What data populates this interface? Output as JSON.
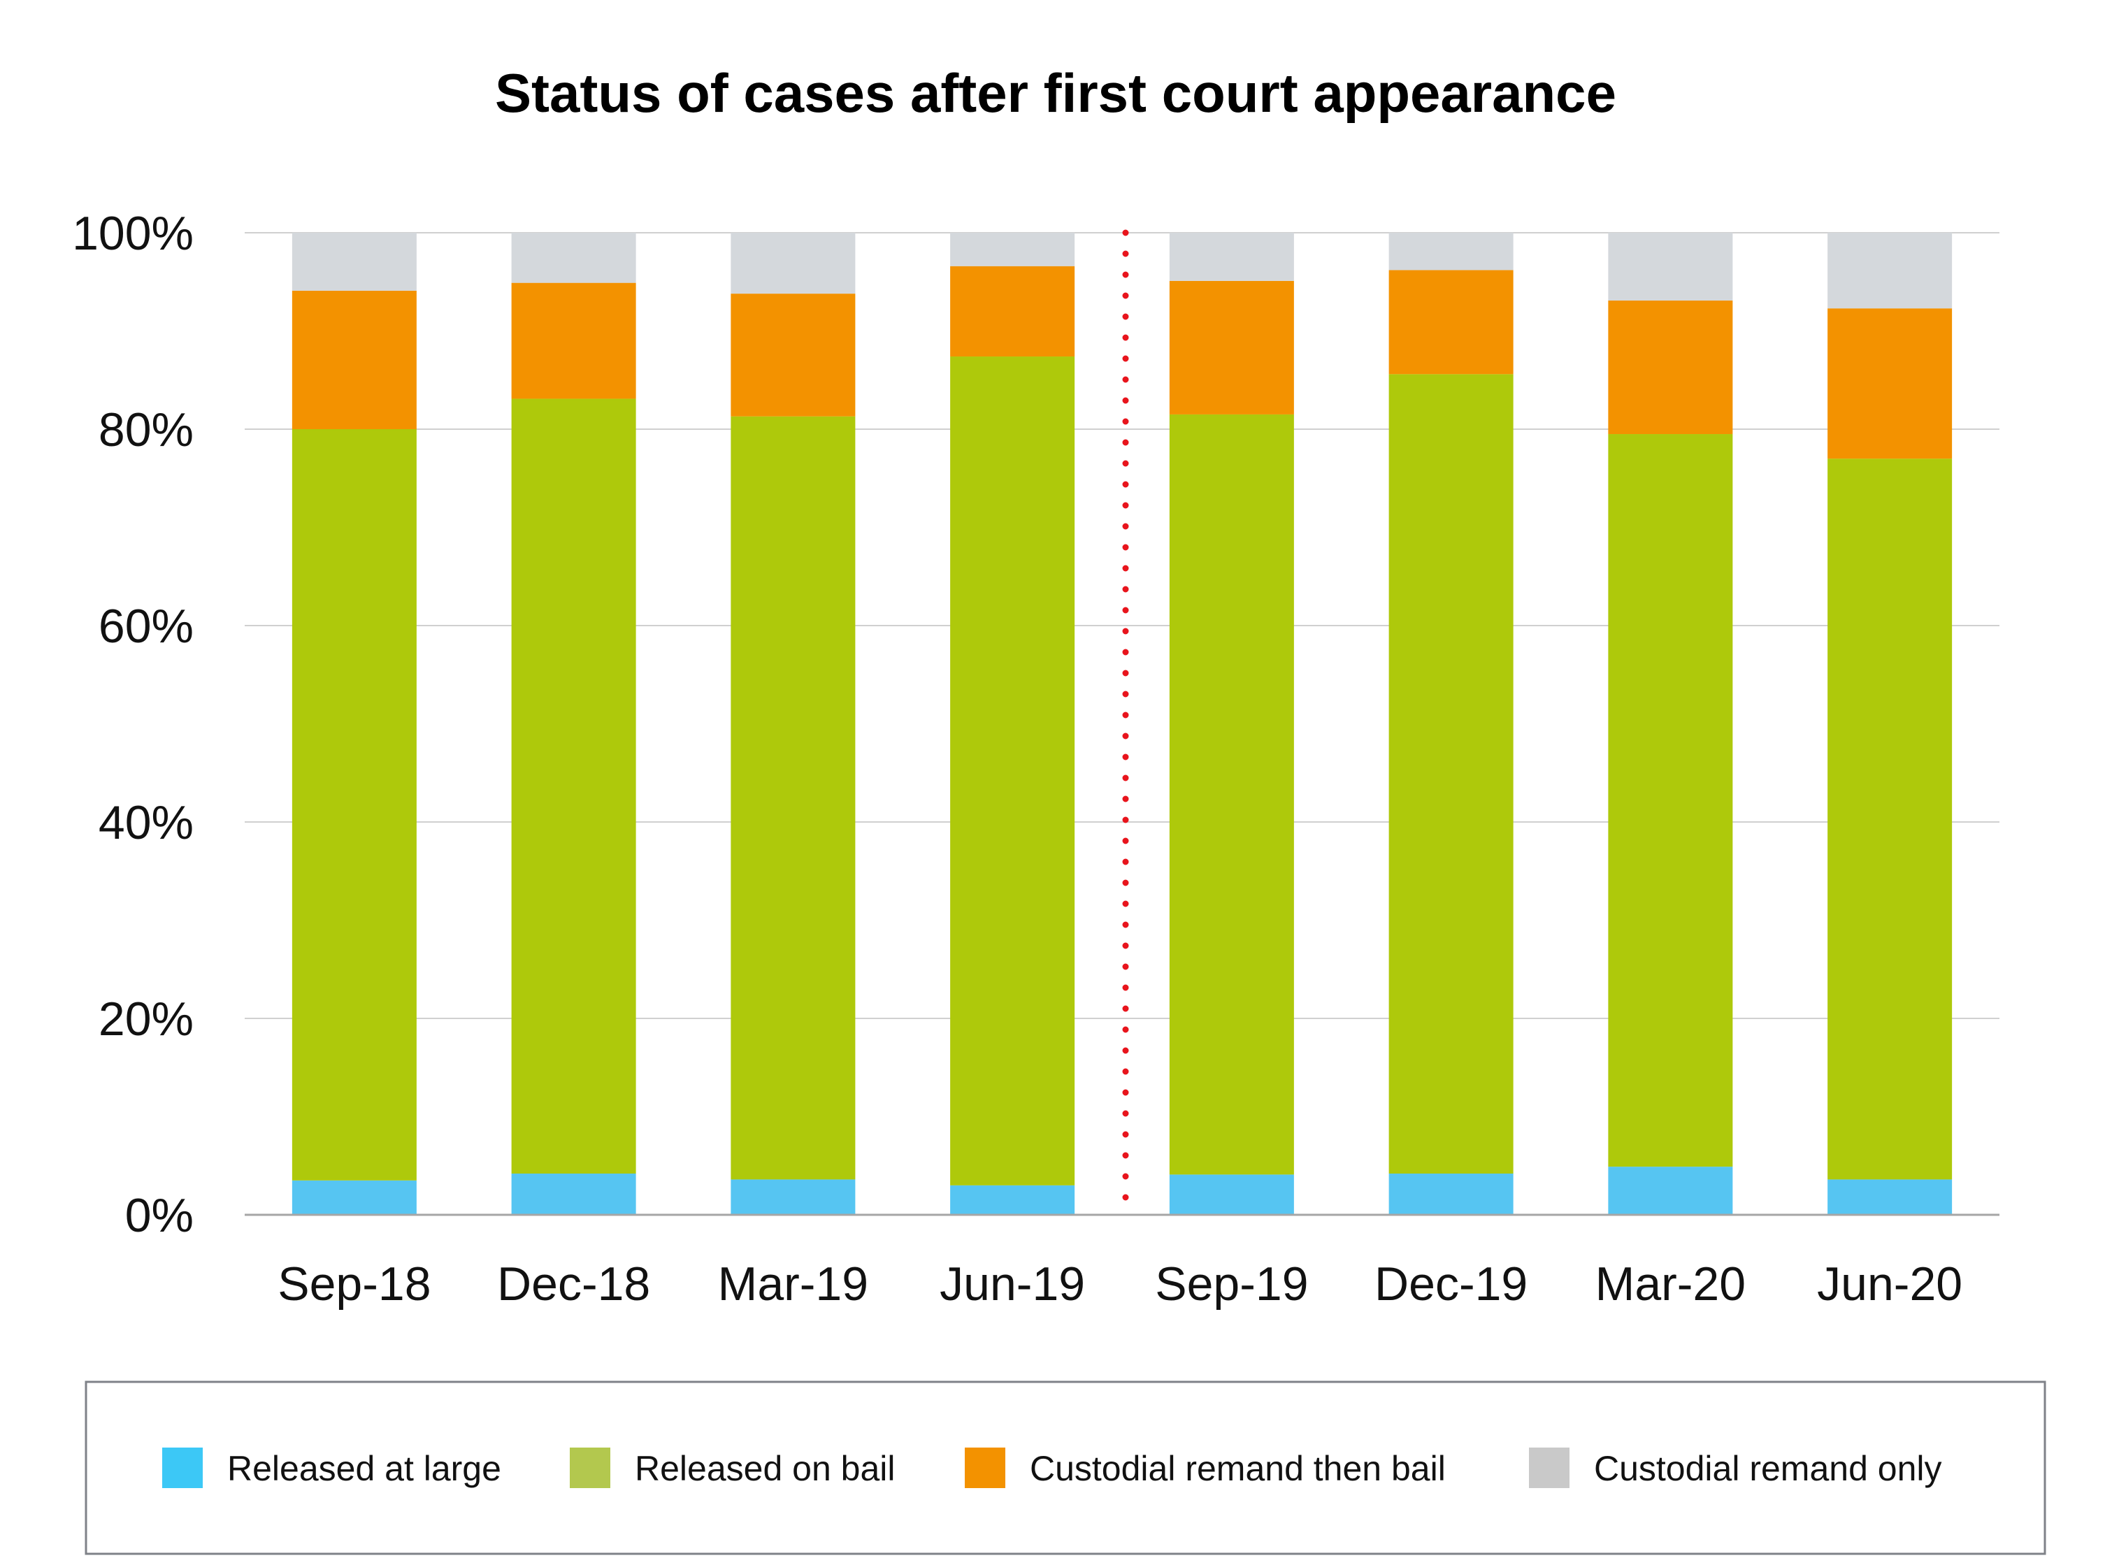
{
  "chart_data": {
    "type": "bar",
    "stacked": true,
    "title": "Status of cases after first court appearance",
    "xlabel": "",
    "ylabel": "",
    "ylim": [
      0,
      100
    ],
    "y_ticks": [
      "0%",
      "20%",
      "40%",
      "60%",
      "80%",
      "100%"
    ],
    "grid": true,
    "legend_position": "bottom",
    "categories": [
      "Sep-18",
      "Dec-18",
      "Mar-19",
      "Jun-19",
      "Sep-19",
      "Dec-19",
      "Mar-20",
      "Jun-20"
    ],
    "series": [
      {
        "name": "Released at large",
        "color": "#56C5F2",
        "legend_color": "#3CC8F6",
        "values": [
          3.5,
          4.2,
          3.6,
          3.0,
          4.1,
          4.2,
          4.9,
          3.6
        ]
      },
      {
        "name": "Released on bail",
        "color": "#AEC90B",
        "legend_color": "#B3C84E",
        "values": [
          76.5,
          78.9,
          77.7,
          84.4,
          77.4,
          81.4,
          74.6,
          73.4
        ]
      },
      {
        "name": "Custodial remand then bail",
        "color": "#F39200",
        "legend_color": "#F39200",
        "values": [
          14.1,
          11.8,
          12.5,
          9.2,
          13.6,
          10.6,
          13.6,
          15.3
        ]
      },
      {
        "name": "Custodial remand only",
        "color": "#D4D8DC",
        "legend_color": "#C9C9C9",
        "values": [
          5.9,
          5.1,
          6.2,
          3.4,
          4.9,
          3.8,
          6.9,
          7.7
        ]
      }
    ],
    "reference_line": {
      "between": [
        "Jun-19",
        "Sep-19"
      ],
      "style": "dotted",
      "color": "#E8141C"
    }
  }
}
